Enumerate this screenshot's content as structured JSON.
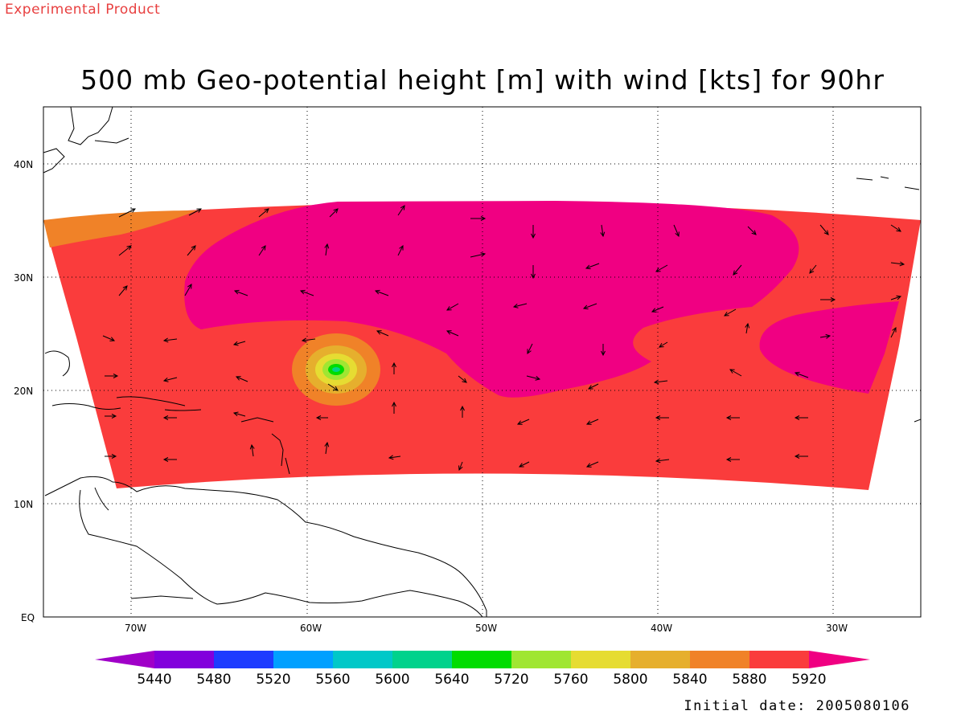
{
  "header": {
    "experimental_label": "Experimental Product",
    "title": "500 mb Geo-potential height [m] with wind [kts] for 90hr"
  },
  "footer": {
    "initial_date": "Initial date: 2005080106"
  },
  "axes": {
    "lon_ticks": [
      "70W",
      "60W",
      "50W",
      "40W",
      "30W"
    ],
    "lat_ticks": [
      "EQ",
      "10N",
      "20N",
      "30N",
      "40N"
    ]
  },
  "colorbar": {
    "labels": [
      "5440",
      "5480",
      "5520",
      "5560",
      "5600",
      "5640",
      "5720",
      "5760",
      "5800",
      "5840",
      "5880",
      "5920"
    ],
    "colors": [
      "#a000c8",
      "#8200dc",
      "#1e3cff",
      "#00a0ff",
      "#00c8c8",
      "#00d28c",
      "#00dc00",
      "#a0e632",
      "#e6dc32",
      "#e6af2d",
      "#f08228",
      "#fa3c3c",
      "#f00082"
    ]
  },
  "fields": {
    "color_5880": "#f08228",
    "color_5920": "#fa3c3c",
    "color_high": "#f00082",
    "low_center_colors": [
      "#f08228",
      "#e6af2d",
      "#e6dc32",
      "#a0e632",
      "#00dc00",
      "#00d28c"
    ]
  }
}
